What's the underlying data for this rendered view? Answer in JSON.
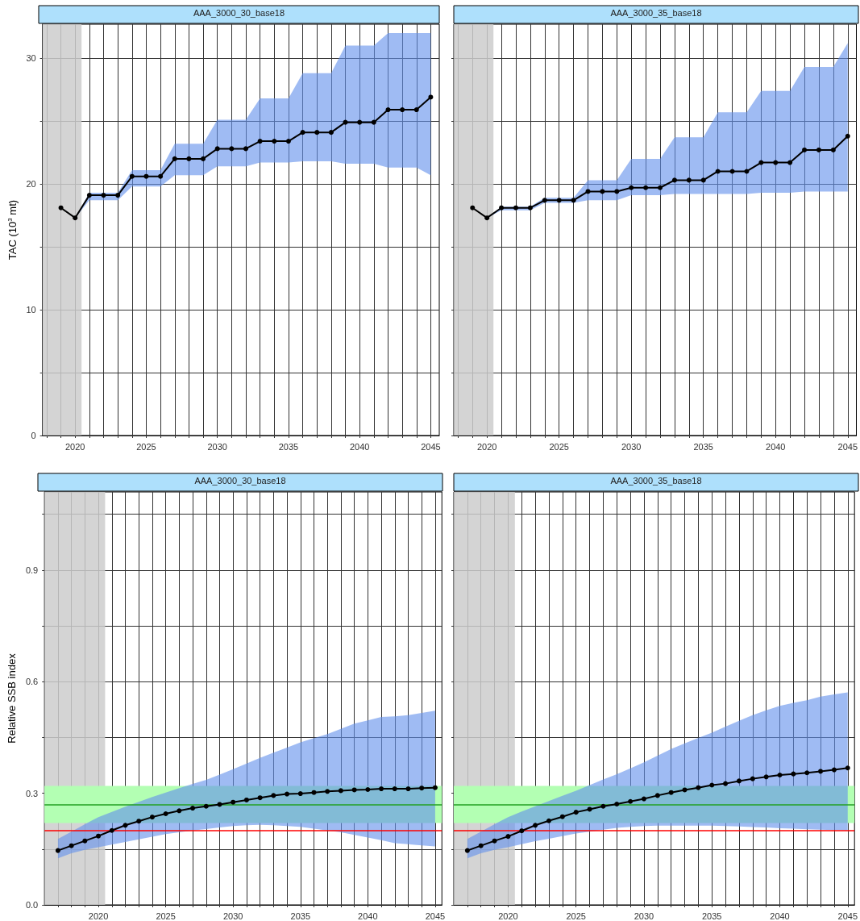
{
  "chart_data": [
    {
      "type": "line",
      "title": "AAA_3000_30_base18",
      "ylabel": "TAC (10$^{3}$ mt)",
      "x": [
        2019,
        2020,
        2021,
        2022,
        2023,
        2024,
        2025,
        2026,
        2027,
        2028,
        2029,
        2030,
        2031,
        2032,
        2033,
        2034,
        2035,
        2036,
        2037,
        2038,
        2039,
        2040,
        2041,
        2042,
        2043,
        2044,
        2045
      ],
      "series": [
        {
          "color": "#000000",
          "values": [
            18.1,
            17.3,
            19.1,
            19.1,
            19.1,
            20.6,
            20.6,
            20.6,
            22.0,
            22.0,
            22.0,
            22.8,
            22.8,
            22.8,
            23.4,
            23.4,
            23.4,
            24.1,
            24.1,
            24.1,
            24.9,
            24.9,
            24.9,
            25.9,
            25.9,
            25.9,
            26.9
          ],
          "upper": [
            null,
            17.3,
            19.3,
            19.3,
            19.3,
            21.1,
            21.1,
            21.1,
            23.2,
            23.2,
            23.2,
            25.1,
            25.1,
            25.1,
            26.8,
            26.8,
            26.8,
            28.8,
            28.8,
            28.8,
            31.0,
            31.0,
            31.0,
            32.0,
            32.0,
            32.0,
            32.0
          ],
          "lower": [
            null,
            17.3,
            18.7,
            18.7,
            18.7,
            19.8,
            19.8,
            19.8,
            20.7,
            20.7,
            20.7,
            21.4,
            21.4,
            21.4,
            21.7,
            21.7,
            21.7,
            21.8,
            21.8,
            21.8,
            21.6,
            21.6,
            21.6,
            21.3,
            21.3,
            21.3,
            20.7
          ]
        }
      ],
      "xlim": [
        2017.7,
        2045.6
      ],
      "xticks": [
        {
          "value": 2018,
          "label": null
        },
        {
          "value": 2019,
          "label": null
        },
        2020,
        {
          "value": 2021,
          "label": null
        },
        {
          "value": 2022,
          "label": null
        },
        {
          "value": 2023,
          "label": null
        },
        {
          "value": 2024,
          "label": null
        },
        2025,
        {
          "value": 2026,
          "label": null
        },
        {
          "value": 2027,
          "label": null
        },
        {
          "value": 2028,
          "label": null
        },
        {
          "value": 2029,
          "label": null
        },
        2030,
        {
          "value": 2031,
          "label": null
        },
        {
          "value": 2032,
          "label": null
        },
        {
          "value": 2033,
          "label": null
        },
        {
          "value": 2034,
          "label": null
        },
        2035,
        {
          "value": 2036,
          "label": null
        },
        {
          "value": 2037,
          "label": null
        },
        {
          "value": 2038,
          "label": null
        },
        {
          "value": 2039,
          "label": null
        },
        2040,
        {
          "value": 2041,
          "label": null
        },
        {
          "value": 2042,
          "label": null
        },
        {
          "value": 2043,
          "label": null
        },
        {
          "value": 2044,
          "label": null
        },
        2045
      ],
      "ylim": [
        0,
        32.7
      ],
      "yticks": [
        0,
        {
          "value": 5,
          "label": null
        },
        10,
        {
          "value": 15,
          "label": null
        },
        20,
        {
          "value": 25,
          "label": null
        },
        30
      ],
      "bands": [
        {
          "axis": "x",
          "from": 2017.7,
          "to": 2020.45,
          "color": "#cccccc"
        }
      ],
      "grid": true,
      "marker": "circle"
    },
    {
      "type": "line",
      "title": "AAA_3000_35_base18",
      "x": [
        2019,
        2020,
        2021,
        2022,
        2023,
        2024,
        2025,
        2026,
        2027,
        2028,
        2029,
        2030,
        2031,
        2032,
        2033,
        2034,
        2035,
        2036,
        2037,
        2038,
        2039,
        2040,
        2041,
        2042,
        2043,
        2044,
        2045
      ],
      "series": [
        {
          "color": "#000000",
          "values": [
            18.1,
            17.3,
            18.1,
            18.1,
            18.1,
            18.7,
            18.7,
            18.7,
            19.4,
            19.4,
            19.4,
            19.7,
            19.7,
            19.7,
            20.3,
            20.3,
            20.3,
            21.0,
            21.0,
            21.0,
            21.7,
            21.7,
            21.7,
            22.7,
            22.7,
            22.7,
            23.8
          ],
          "upper": [
            null,
            17.3,
            18.2,
            18.2,
            18.2,
            18.9,
            18.9,
            18.9,
            20.3,
            20.3,
            20.3,
            22.0,
            22.0,
            22.0,
            23.7,
            23.7,
            23.7,
            25.7,
            25.7,
            25.7,
            27.4,
            27.4,
            27.4,
            29.3,
            29.3,
            29.3,
            31.2
          ],
          "lower": [
            null,
            17.3,
            17.9,
            17.9,
            17.9,
            18.5,
            18.5,
            18.5,
            18.7,
            18.7,
            18.7,
            19.1,
            19.1,
            19.1,
            19.2,
            19.2,
            19.2,
            19.2,
            19.2,
            19.2,
            19.3,
            19.3,
            19.3,
            19.4,
            19.4,
            19.4,
            19.4
          ]
        }
      ],
      "xlim": [
        2017.7,
        2045.6
      ],
      "xticks": [
        {
          "value": 2018,
          "label": null
        },
        {
          "value": 2019,
          "label": null
        },
        2020,
        {
          "value": 2021,
          "label": null
        },
        {
          "value": 2022,
          "label": null
        },
        {
          "value": 2023,
          "label": null
        },
        {
          "value": 2024,
          "label": null
        },
        2025,
        {
          "value": 2026,
          "label": null
        },
        {
          "value": 2027,
          "label": null
        },
        {
          "value": 2028,
          "label": null
        },
        {
          "value": 2029,
          "label": null
        },
        2030,
        {
          "value": 2031,
          "label": null
        },
        {
          "value": 2032,
          "label": null
        },
        {
          "value": 2033,
          "label": null
        },
        {
          "value": 2034,
          "label": null
        },
        2035,
        {
          "value": 2036,
          "label": null
        },
        {
          "value": 2037,
          "label": null
        },
        {
          "value": 2038,
          "label": null
        },
        {
          "value": 2039,
          "label": null
        },
        2040,
        {
          "value": 2041,
          "label": null
        },
        {
          "value": 2042,
          "label": null
        },
        {
          "value": 2043,
          "label": null
        },
        {
          "value": 2044,
          "label": null
        },
        2045
      ],
      "ylim": [
        0,
        32.7
      ],
      "yticks": [
        0,
        {
          "value": 5,
          "label": null
        },
        10,
        {
          "value": 15,
          "label": null
        },
        20,
        {
          "value": 25,
          "label": null
        },
        30
      ],
      "bands": [
        {
          "axis": "x",
          "from": 2017.7,
          "to": 2020.45,
          "color": "#cccccc"
        }
      ],
      "grid": true,
      "marker": "circle",
      "tick_labels": "x"
    },
    {
      "type": "line",
      "title": "AAA_3000_30_base18",
      "ylabel": "Relative SSB index",
      "x": [
        2017,
        2018,
        2019,
        2020,
        2021,
        2022,
        2023,
        2024,
        2025,
        2026,
        2027,
        2028,
        2029,
        2030,
        2031,
        2032,
        2033,
        2034,
        2035,
        2036,
        2037,
        2038,
        2039,
        2040,
        2041,
        2042,
        2043,
        2044,
        2045
      ],
      "series": [
        {
          "color": "#000000",
          "values": [
            0.146,
            0.159,
            0.172,
            0.185,
            0.2,
            0.214,
            0.225,
            0.236,
            0.245,
            0.253,
            0.26,
            0.265,
            0.27,
            0.276,
            0.282,
            0.288,
            0.294,
            0.298,
            0.299,
            0.302,
            0.305,
            0.307,
            0.309,
            0.31,
            0.312,
            0.312,
            0.312,
            0.314,
            0.315
          ],
          "upper": [
            0.177,
            0.197,
            0.217,
            0.236,
            0.25,
            0.264,
            0.277,
            0.29,
            0.302,
            0.314,
            0.325,
            0.336,
            0.35,
            0.365,
            0.38,
            0.395,
            0.409,
            0.423,
            0.437,
            0.448,
            0.459,
            0.473,
            0.487,
            0.496,
            0.505,
            0.507,
            0.51,
            0.516,
            0.522
          ],
          "lower": [
            0.125,
            0.139,
            0.148,
            0.155,
            0.162,
            0.169,
            0.176,
            0.183,
            0.19,
            0.195,
            0.2,
            0.204,
            0.208,
            0.212,
            0.214,
            0.215,
            0.214,
            0.212,
            0.21,
            0.205,
            0.2,
            0.195,
            0.188,
            0.181,
            0.174,
            0.166,
            0.163,
            0.16,
            0.157
          ]
        }
      ],
      "xlim": [
        2016,
        2045.5
      ],
      "xticks": [
        {
          "value": 2017,
          "label": null
        },
        {
          "value": 2018,
          "label": null
        },
        {
          "value": 2019,
          "label": null
        },
        2020,
        {
          "value": 2021,
          "label": null
        },
        {
          "value": 2022,
          "label": null
        },
        {
          "value": 2023,
          "label": null
        },
        {
          "value": 2024,
          "label": null
        },
        2025,
        {
          "value": 2026,
          "label": null
        },
        {
          "value": 2027,
          "label": null
        },
        {
          "value": 2028,
          "label": null
        },
        {
          "value": 2029,
          "label": null
        },
        2030,
        {
          "value": 2031,
          "label": null
        },
        {
          "value": 2032,
          "label": null
        },
        {
          "value": 2033,
          "label": null
        },
        {
          "value": 2034,
          "label": null
        },
        2035,
        {
          "value": 2036,
          "label": null
        },
        {
          "value": 2037,
          "label": null
        },
        {
          "value": 2038,
          "label": null
        },
        {
          "value": 2039,
          "label": null
        },
        2040,
        {
          "value": 2041,
          "label": null
        },
        {
          "value": 2042,
          "label": null
        },
        {
          "value": 2043,
          "label": null
        },
        {
          "value": 2044,
          "label": null
        },
        2045
      ],
      "ylim": [
        0,
        1.11
      ],
      "yticks": [
        {
          "value": 0,
          "label": "0.0"
        },
        {
          "value": 0.15,
          "label": null
        },
        0.3,
        {
          "value": 0.45,
          "label": null
        },
        0.6,
        {
          "value": 0.75,
          "label": null
        },
        0.9,
        {
          "value": 1.05,
          "label": null
        }
      ],
      "bands": [
        {
          "axis": "x",
          "from": 2016,
          "to": 2020.5,
          "color": "#cccccc"
        },
        {
          "axis": "y",
          "from": 0.22,
          "to": 0.32,
          "color": "#b3ffb3"
        }
      ],
      "ref_lines": [
        {
          "axis": "y",
          "value": 0.27,
          "color": "#22a022"
        },
        {
          "axis": "y",
          "value": 0.2,
          "color": "#ff0000"
        }
      ],
      "grid": true,
      "marker": "circle"
    },
    {
      "type": "line",
      "title": "AAA_3000_35_base18",
      "x": [
        2017,
        2018,
        2019,
        2020,
        2021,
        2022,
        2023,
        2024,
        2025,
        2026,
        2027,
        2028,
        2029,
        2030,
        2031,
        2032,
        2033,
        2034,
        2035,
        2036,
        2037,
        2038,
        2039,
        2040,
        2041,
        2042,
        2043,
        2044,
        2045
      ],
      "series": [
        {
          "color": "#000000",
          "values": [
            0.146,
            0.159,
            0.172,
            0.184,
            0.199,
            0.214,
            0.226,
            0.237,
            0.249,
            0.257,
            0.265,
            0.271,
            0.278,
            0.285,
            0.294,
            0.302,
            0.309,
            0.315,
            0.322,
            0.326,
            0.333,
            0.339,
            0.344,
            0.349,
            0.352,
            0.355,
            0.359,
            0.363,
            0.368
          ],
          "upper": [
            0.177,
            0.197,
            0.217,
            0.236,
            0.251,
            0.265,
            0.279,
            0.293,
            0.307,
            0.322,
            0.337,
            0.351,
            0.367,
            0.383,
            0.401,
            0.419,
            0.434,
            0.449,
            0.463,
            0.479,
            0.495,
            0.51,
            0.523,
            0.535,
            0.543,
            0.55,
            0.56,
            0.566,
            0.571
          ],
          "lower": [
            0.125,
            0.139,
            0.148,
            0.155,
            0.163,
            0.171,
            0.178,
            0.185,
            0.192,
            0.197,
            0.202,
            0.207,
            0.21,
            0.212,
            0.213,
            0.213,
            0.213,
            0.213,
            0.213,
            0.212,
            0.211,
            0.209,
            0.208,
            0.206,
            0.205,
            0.203,
            0.202,
            0.201,
            0.2
          ]
        }
      ],
      "xlim": [
        2016,
        2045.5
      ],
      "xticks": [
        {
          "value": 2017,
          "label": null
        },
        {
          "value": 2018,
          "label": null
        },
        {
          "value": 2019,
          "label": null
        },
        2020,
        {
          "value": 2021,
          "label": null
        },
        {
          "value": 2022,
          "label": null
        },
        {
          "value": 2023,
          "label": null
        },
        {
          "value": 2024,
          "label": null
        },
        2025,
        {
          "value": 2026,
          "label": null
        },
        {
          "value": 2027,
          "label": null
        },
        {
          "value": 2028,
          "label": null
        },
        {
          "value": 2029,
          "label": null
        },
        2030,
        {
          "value": 2031,
          "label": null
        },
        {
          "value": 2032,
          "label": null
        },
        {
          "value": 2033,
          "label": null
        },
        {
          "value": 2034,
          "label": null
        },
        2035,
        {
          "value": 2036,
          "label": null
        },
        {
          "value": 2037,
          "label": null
        },
        {
          "value": 2038,
          "label": null
        },
        {
          "value": 2039,
          "label": null
        },
        2040,
        {
          "value": 2041,
          "label": null
        },
        {
          "value": 2042,
          "label": null
        },
        {
          "value": 2043,
          "label": null
        },
        {
          "value": 2044,
          "label": null
        },
        2045
      ],
      "ylim": [
        0,
        1.11
      ],
      "yticks": [
        0,
        {
          "value": 0.15,
          "label": null
        },
        0.3,
        {
          "value": 0.45,
          "label": null
        },
        0.6,
        {
          "value": 0.75,
          "label": null
        },
        0.9,
        {
          "value": 1.05,
          "label": null
        }
      ],
      "bands": [
        {
          "axis": "x",
          "from": 2016,
          "to": 2020.5,
          "color": "#cccccc"
        },
        {
          "axis": "y",
          "from": 0.22,
          "to": 0.32,
          "color": "#b3ffb3"
        }
      ],
      "ref_lines": [
        {
          "axis": "y",
          "value": 0.27,
          "color": "#22a022"
        },
        {
          "axis": "y",
          "value": 0.2,
          "color": "#ff0000"
        }
      ],
      "grid": true,
      "marker": "circle",
      "tick_labels": "x"
    }
  ]
}
